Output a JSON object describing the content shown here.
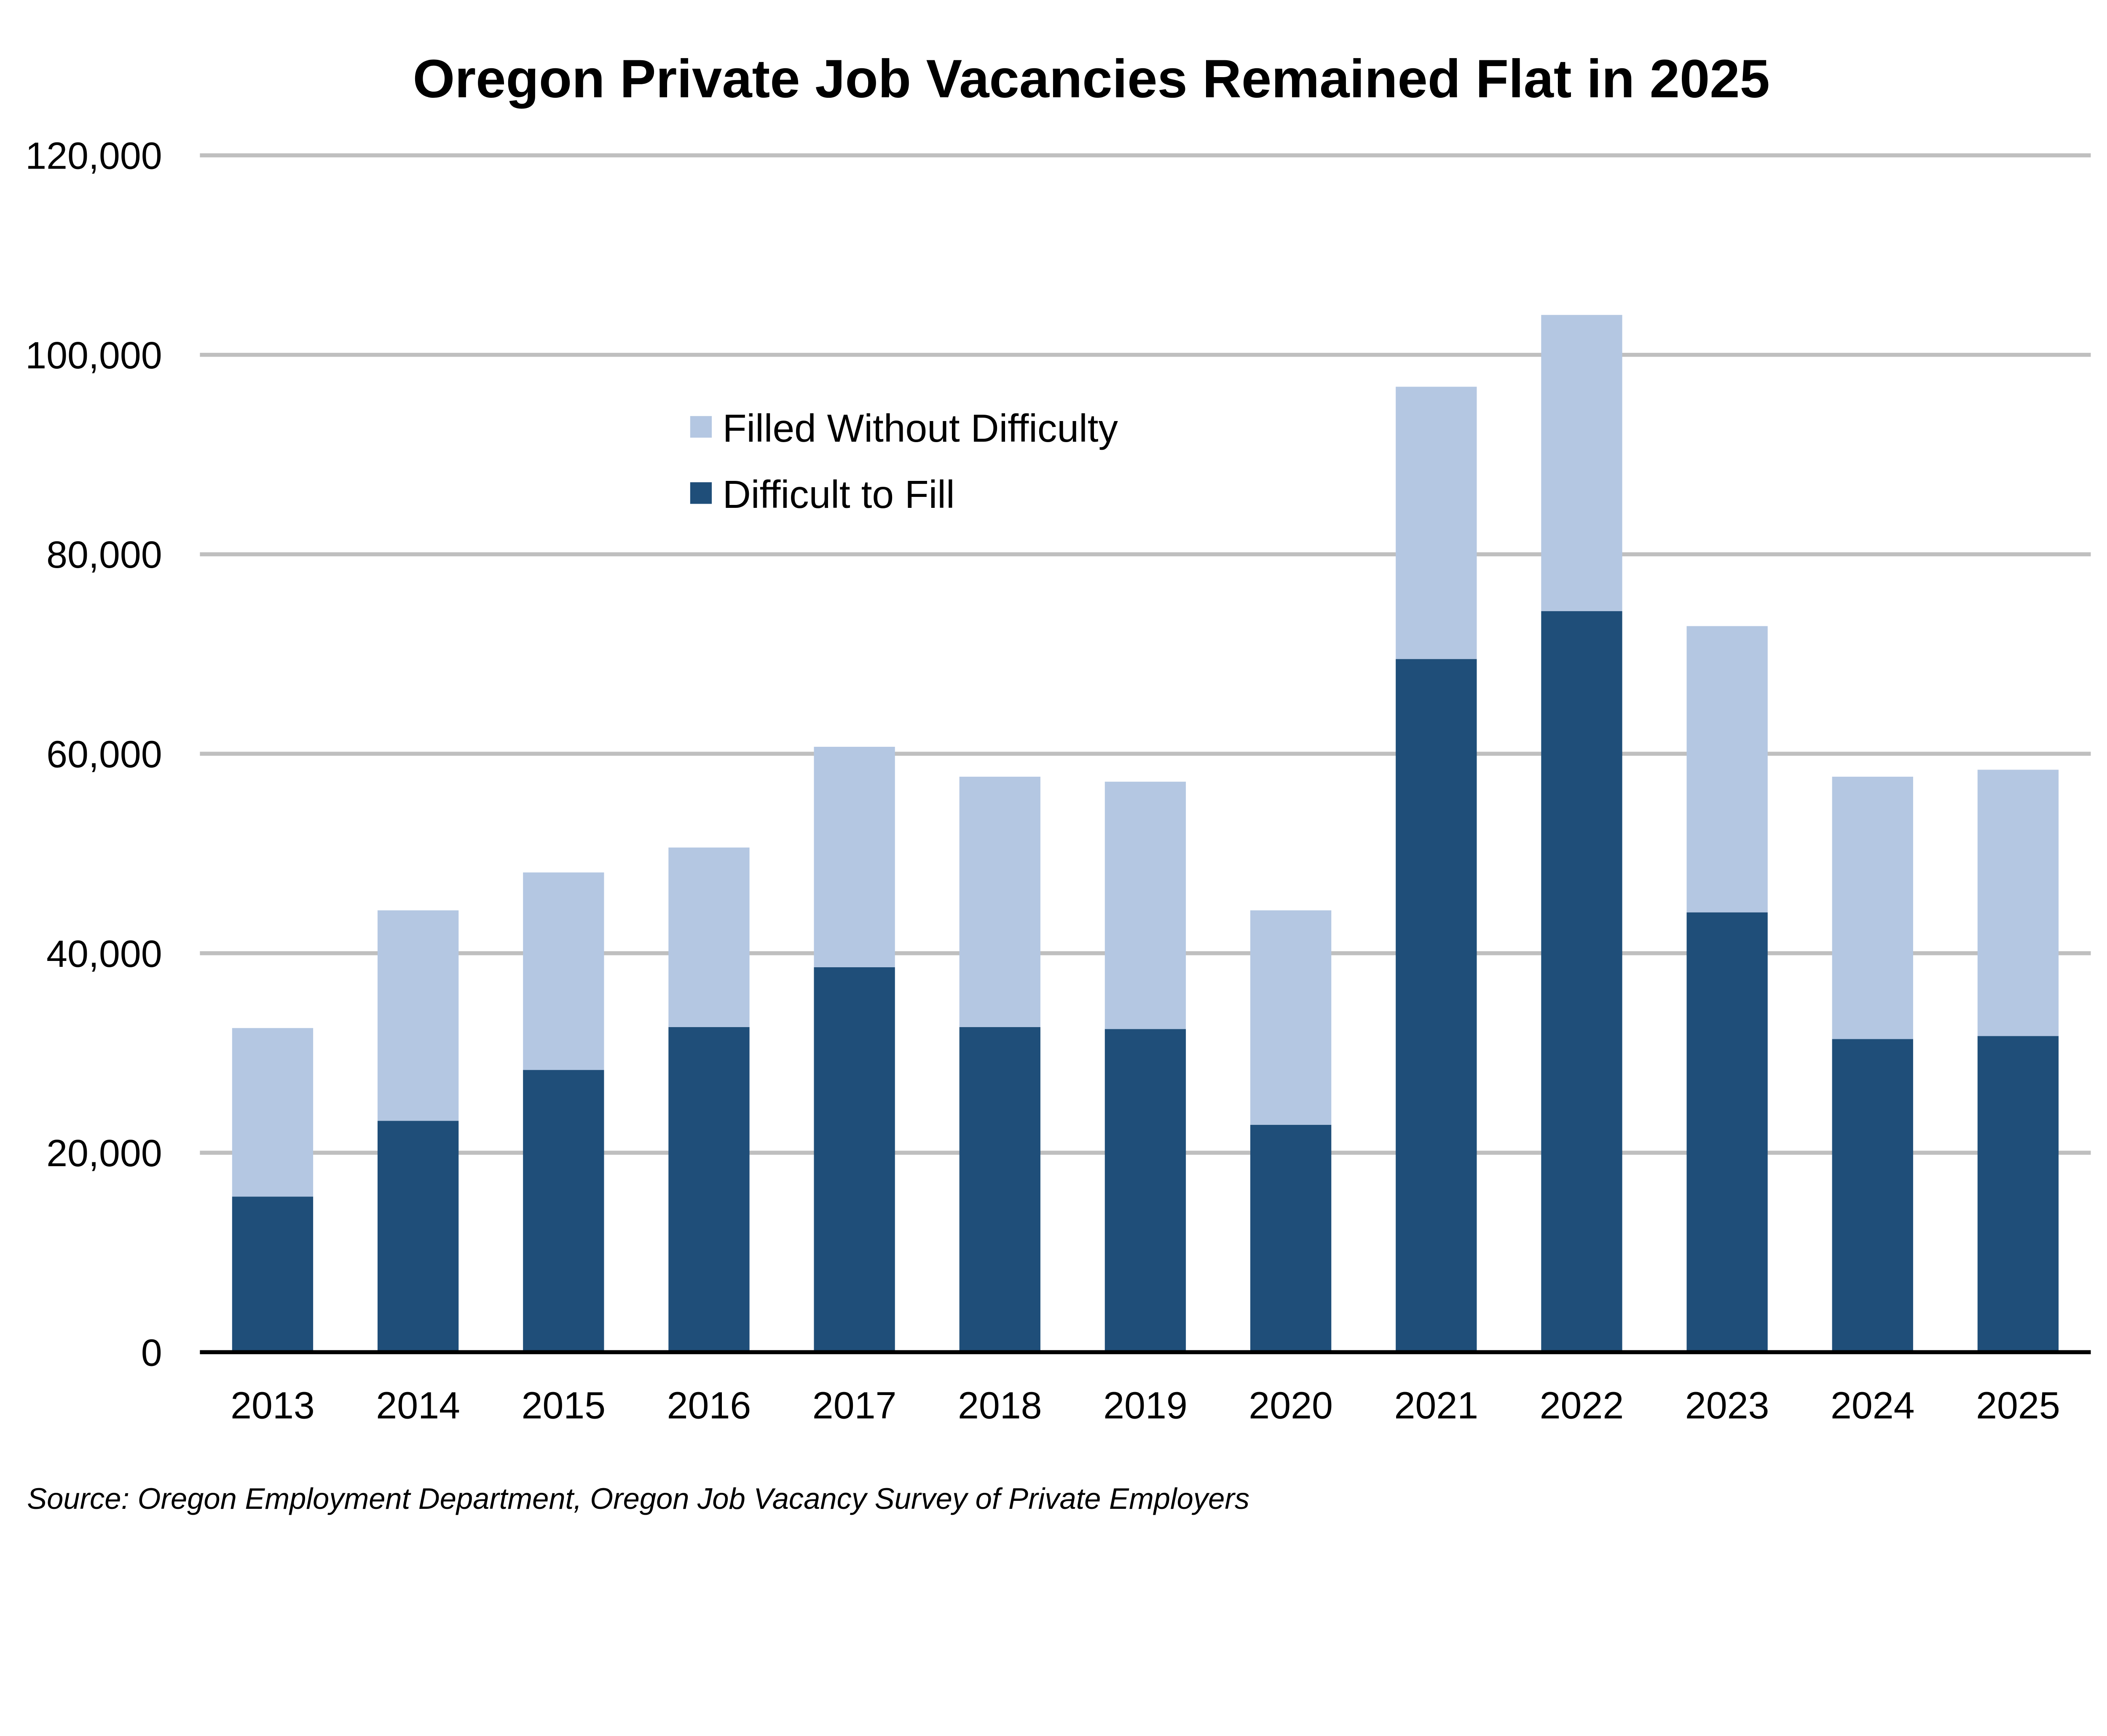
{
  "chart_data": {
    "type": "bar",
    "stacked": true,
    "title": "Oregon Private Job Vacancies Remained Flat in 2025",
    "xlabel": "",
    "ylabel": "",
    "ylim": [
      0,
      120000
    ],
    "yticks": [
      "0",
      "20,000",
      "40,000",
      "60,000",
      "80,000",
      "100,000",
      "120,000"
    ],
    "grid": true,
    "legend_position": "upper-center",
    "categories": [
      "2013",
      "2014",
      "2015",
      "2016",
      "2017",
      "2018",
      "2019",
      "2020",
      "2021",
      "2022",
      "2023",
      "2024",
      "2025"
    ],
    "series": [
      {
        "name": "Difficult to Fill",
        "color": "#1F4E79",
        "values": [
          15600,
          23200,
          28300,
          32600,
          38600,
          32600,
          32400,
          22800,
          69500,
          74300,
          44100,
          31400,
          31700
        ]
      },
      {
        "name": "Filled Without Difficulty",
        "color": "#B4C7E2",
        "values": [
          16900,
          21100,
          19800,
          18000,
          22100,
          25100,
          24800,
          21500,
          27300,
          29700,
          28700,
          26300,
          26700
        ]
      }
    ],
    "legend_order": [
      "Filled Without Difficulty",
      "Difficult to Fill"
    ],
    "source": "Source: Oregon Employment Department, Oregon Job Vacancy Survey of Private Employers"
  }
}
